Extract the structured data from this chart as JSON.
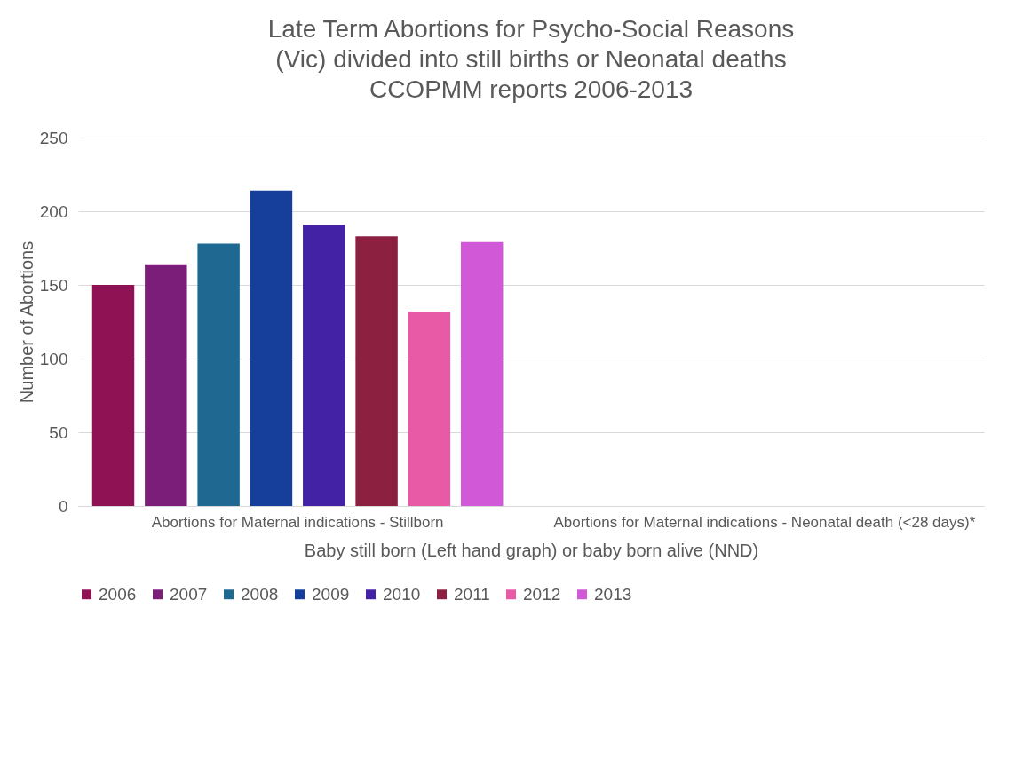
{
  "chart_data": {
    "type": "bar",
    "title": "Late Term Abortions for Psycho-Social Reasons\n(Vic) divided into still births or Neonatal deaths\nCCOPMM reports 2006-2013",
    "xlabel": "Baby still born (Left hand graph) or baby born alive (NND)",
    "ylabel": "Number of Abortions",
    "categories": [
      "Abortions for Maternal indications - Stillborn",
      "Abortions for Maternal indications - Neonatal death (<28 days)*"
    ],
    "series": [
      {
        "name": "2006",
        "color": "#8e1254",
        "values": [
          150,
          null
        ]
      },
      {
        "name": "2007",
        "color": "#7b1e7a",
        "values": [
          164,
          null
        ]
      },
      {
        "name": "2008",
        "color": "#1f6891",
        "values": [
          178,
          null
        ]
      },
      {
        "name": "2009",
        "color": "#163f9c",
        "values": [
          214,
          null
        ]
      },
      {
        "name": "2010",
        "color": "#4422a6",
        "values": [
          191,
          null
        ]
      },
      {
        "name": "2011",
        "color": "#8b2040",
        "values": [
          183,
          null
        ]
      },
      {
        "name": "2012",
        "color": "#e85aa6",
        "values": [
          132,
          null
        ]
      },
      {
        "name": "2013",
        "color": "#d158d6",
        "values": [
          179,
          null
        ]
      }
    ],
    "ylim": [
      0,
      250
    ],
    "yticks": [
      0,
      50,
      100,
      150,
      200,
      250
    ],
    "grid": "y",
    "legend": "bottom"
  }
}
